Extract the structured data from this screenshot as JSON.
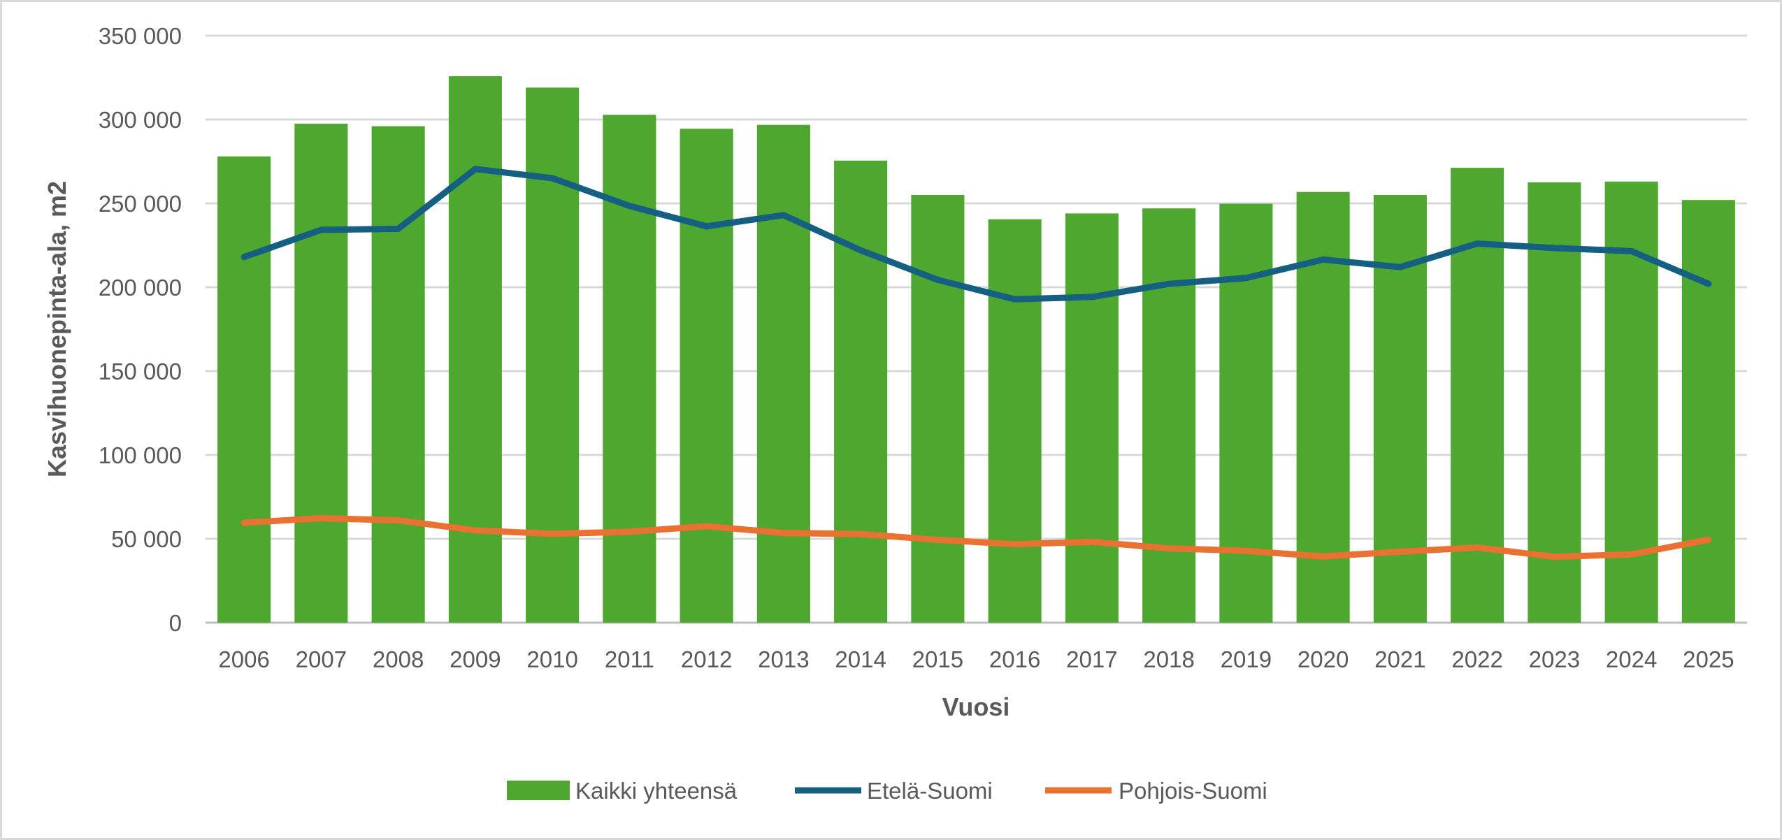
{
  "chart_data": {
    "type": "bar",
    "title": "",
    "xlabel": "Vuosi",
    "ylabel": "Kasvihuonepinta-ala, m2",
    "ylim": [
      0,
      350000
    ],
    "yticks": [
      0,
      50000,
      100000,
      150000,
      200000,
      250000,
      300000,
      350000
    ],
    "ytick_labels": [
      "0",
      "50 000",
      "100 000",
      "150 000",
      "200 000",
      "250 000",
      "300 000",
      "350 000"
    ],
    "grid": true,
    "legend_position": "bottom",
    "categories": [
      "2006",
      "2007",
      "2008",
      "2009",
      "2010",
      "2011",
      "2012",
      "2013",
      "2014",
      "2015",
      "2016",
      "2017",
      "2018",
      "2019",
      "2020",
      "2021",
      "2022",
      "2023",
      "2024",
      "2025"
    ],
    "series": [
      {
        "name": "Kaikki yhteensä",
        "type": "bar",
        "color": "#4EA72E",
        "values": [
          278000,
          297500,
          296000,
          325800,
          319000,
          302800,
          294500,
          296800,
          275500,
          255000,
          240500,
          244000,
          247000,
          249800,
          256800,
          255000,
          271200,
          262500,
          263000,
          252000
        ]
      },
      {
        "name": "Etelä-Suomi",
        "type": "line",
        "color": "#156082",
        "values": [
          218000,
          234200,
          234800,
          270500,
          265000,
          248500,
          236300,
          243000,
          222000,
          204400,
          192800,
          194200,
          202000,
          205500,
          216500,
          212000,
          226000,
          223400,
          221500,
          202000
        ]
      },
      {
        "name": "Pohjois-Suomi",
        "type": "line",
        "color": "#E97132",
        "values": [
          59600,
          62300,
          61000,
          55000,
          53000,
          54200,
          57500,
          53500,
          52800,
          49400,
          46800,
          48200,
          44300,
          42800,
          39500,
          42300,
          44800,
          39300,
          40700,
          49500
        ]
      }
    ]
  }
}
